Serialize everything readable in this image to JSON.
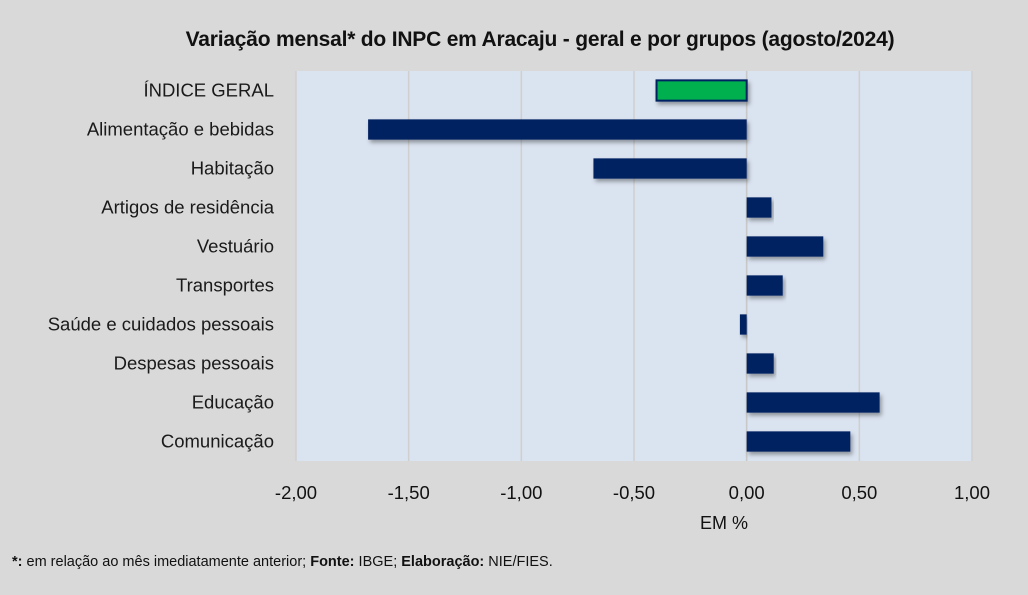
{
  "chart_data": {
    "type": "bar",
    "orientation": "horizontal",
    "title": "Variação  mensal* do INPC em Aracaju  - geral e por grupos (agosto/2024)",
    "xlabel": "EM %",
    "ylabel": "",
    "xlim": [
      -2.0,
      1.0
    ],
    "xticks": [
      -2.0,
      -1.5,
      -1.0,
      -0.5,
      0.0,
      0.5,
      1.0
    ],
    "xtick_labels": [
      "-2,00",
      "-1,50",
      "-1,00",
      "-0,50",
      "0,00",
      "0,50",
      "1,00"
    ],
    "grid": "vertical",
    "categories": [
      "ÍNDICE GERAL",
      "Alimentação e bebidas",
      "Habitação",
      "Artigos de residência",
      "Vestuário",
      "Transportes",
      "Saúde e cuidados pessoais",
      "Despesas pessoais",
      "Educação",
      "Comunicação"
    ],
    "values": [
      -0.4,
      -1.68,
      -0.68,
      0.11,
      0.34,
      0.16,
      -0.03,
      0.12,
      0.59,
      0.46
    ],
    "highlight_index": 0,
    "colors": {
      "bar": "#002060",
      "highlight": "#00b050",
      "plot_bg": "#dae3f0",
      "page_bg": "#d9d9d9",
      "grid": "#cfcfcf"
    }
  },
  "footnote": {
    "asterisk": "*:",
    "note": " em relação ao mês imediatamente  anterior; ",
    "source_label": "Fonte:",
    "source": " IBGE; ",
    "elab_label": "Elaboração:",
    "elab": " NIE/FIES."
  }
}
